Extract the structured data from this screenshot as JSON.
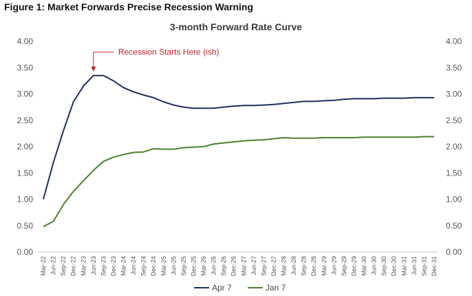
{
  "figure_title": "Figure 1: Market Forwards Precise Recession Warning",
  "chart_data": {
    "type": "line",
    "title": "3-month Forward Rate Curve",
    "xlabel": "",
    "ylabel": "",
    "ylim": [
      0,
      4
    ],
    "yticks": [
      "0.00",
      "0.50",
      "1.00",
      "1.50",
      "2.00",
      "2.50",
      "3.00",
      "3.50",
      "4.00"
    ],
    "grid": false,
    "legend": "bottom",
    "categories": [
      "Mar-22",
      "Jun-22",
      "Sep-22",
      "Dec-22",
      "Mar-23",
      "Jun-23",
      "Sep-23",
      "Dec-23",
      "Mar-24",
      "Jun-24",
      "Sep-24",
      "Dec-24",
      "Mar-25",
      "Jun-25",
      "Sep-25",
      "Dec-25",
      "Mar-26",
      "Jun-26",
      "Sep-26",
      "Dec-26",
      "Mar-27",
      "Jun-27",
      "Sep-27",
      "Dec-27",
      "Mar-28",
      "Jun-28",
      "Sep-28",
      "Dec-28",
      "Mar-29",
      "Jun-29",
      "Sep-29",
      "Dec-29",
      "Mar-30",
      "Jun-30",
      "Sep-30",
      "Dec-30",
      "Mar-31",
      "Jun-31",
      "Sep-31",
      "Dec-31"
    ],
    "series": [
      {
        "name": "Apr 7",
        "color": "#1f2d5c",
        "values": [
          1.0,
          1.7,
          2.3,
          2.85,
          3.15,
          3.35,
          3.35,
          3.25,
          3.12,
          3.04,
          2.98,
          2.93,
          2.85,
          2.79,
          2.75,
          2.73,
          2.73,
          2.73,
          2.75,
          2.77,
          2.78,
          2.78,
          2.79,
          2.8,
          2.82,
          2.84,
          2.86,
          2.86,
          2.87,
          2.88,
          2.9,
          2.91,
          2.91,
          2.91,
          2.92,
          2.92,
          2.92,
          2.93,
          2.93,
          2.93
        ]
      },
      {
        "name": "Jan 7",
        "color": "#4e7f2f",
        "values": [
          0.48,
          0.58,
          0.9,
          1.15,
          1.35,
          1.55,
          1.72,
          1.8,
          1.85,
          1.89,
          1.9,
          1.96,
          1.95,
          1.95,
          1.98,
          1.99,
          2.0,
          2.05,
          2.07,
          2.09,
          2.11,
          2.12,
          2.13,
          2.15,
          2.17,
          2.16,
          2.16,
          2.16,
          2.17,
          2.17,
          2.17,
          2.17,
          2.18,
          2.18,
          2.18,
          2.18,
          2.18,
          2.18,
          2.19,
          2.19
        ]
      }
    ],
    "annotations": [
      {
        "text": "Recession Starts Here (ish)",
        "category": "Jun-23",
        "value": 3.35
      }
    ]
  }
}
